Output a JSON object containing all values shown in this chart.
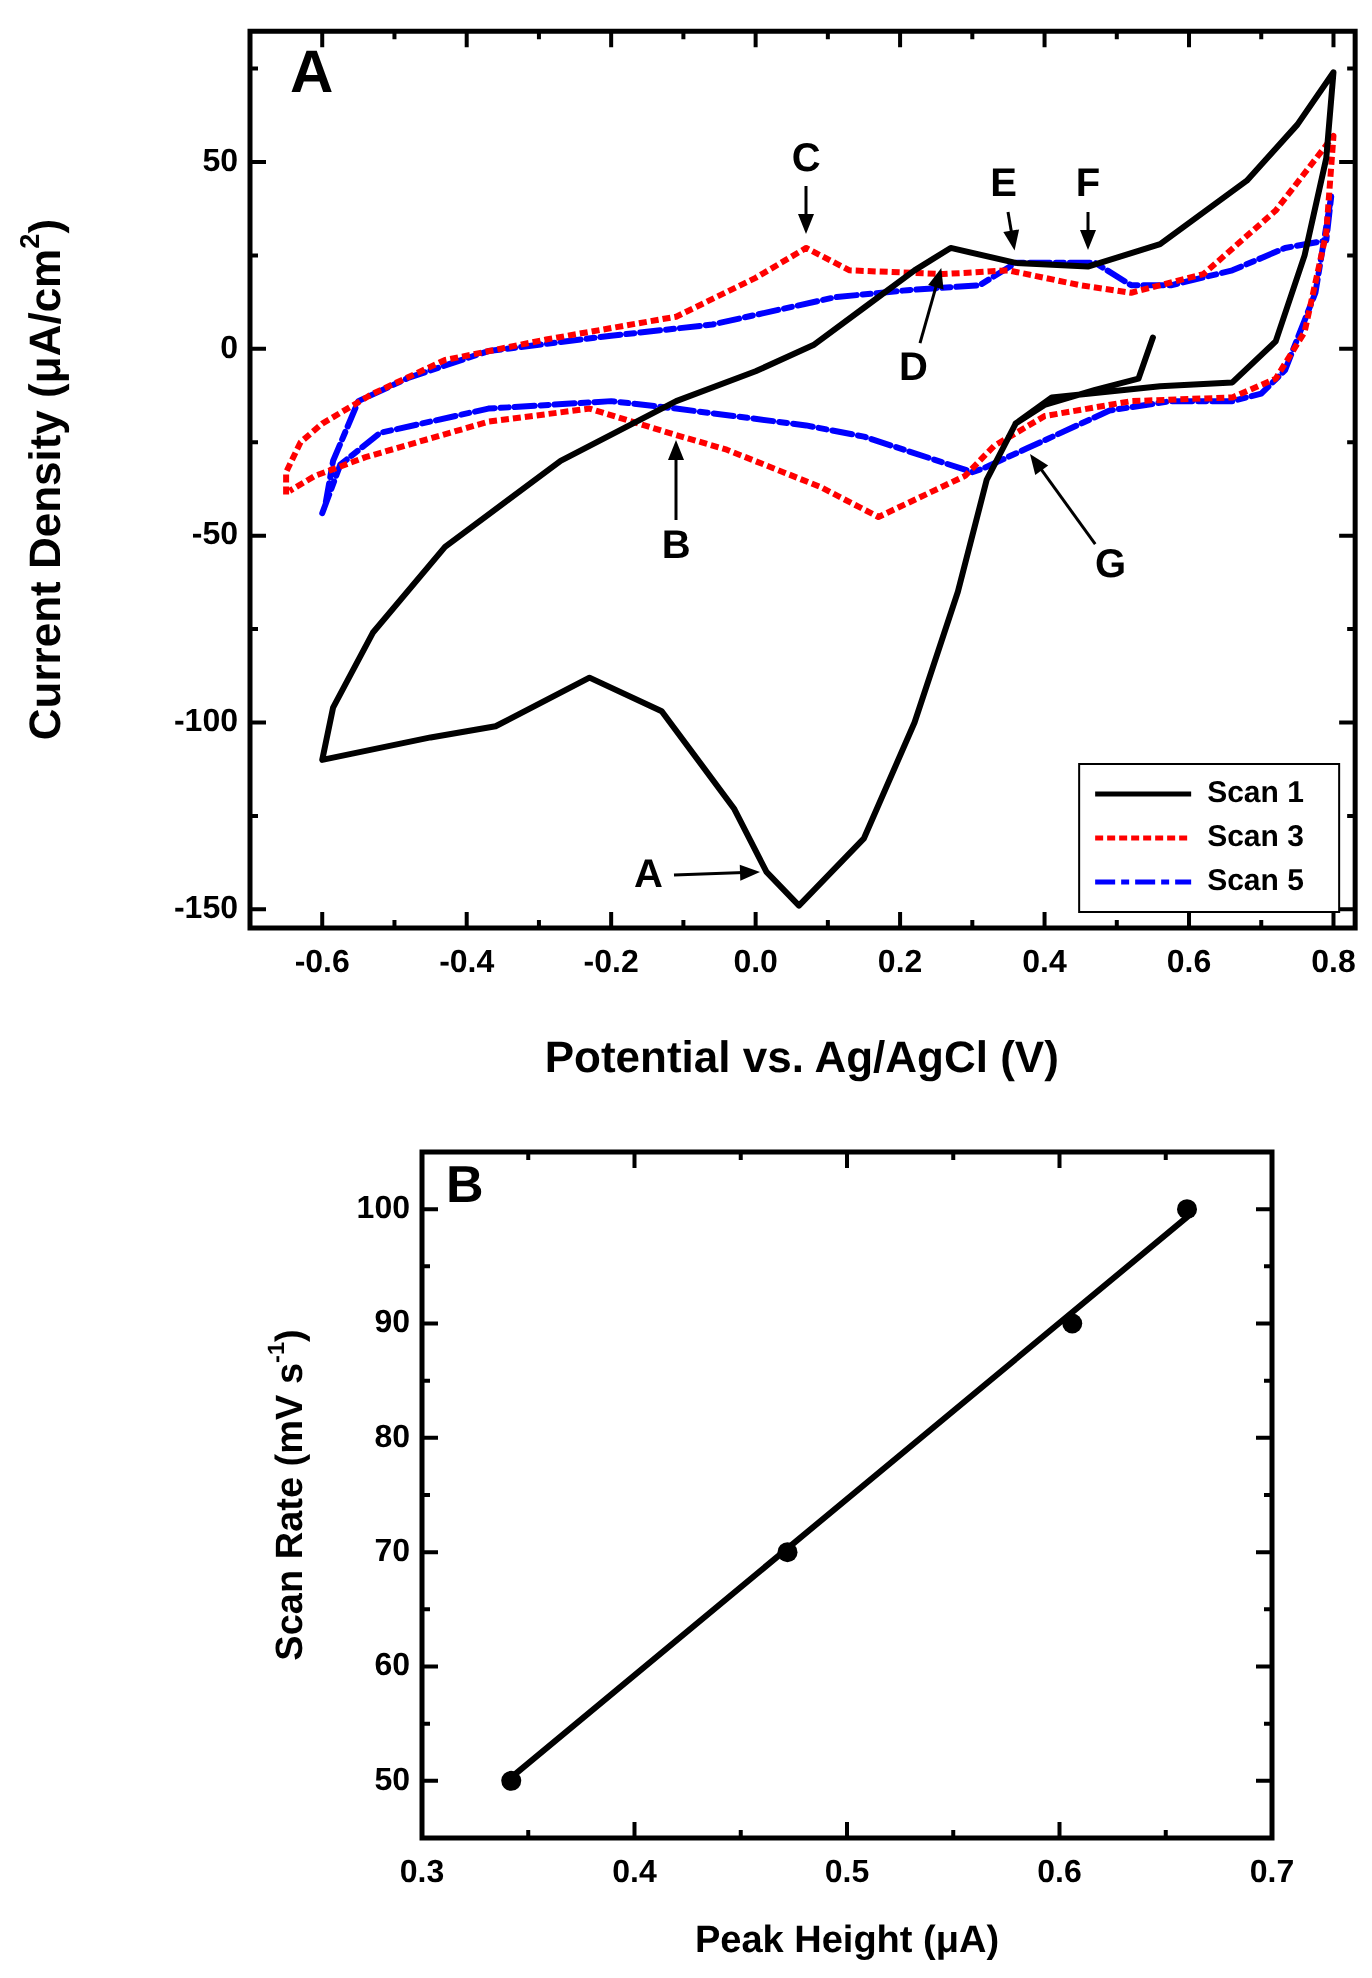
{
  "chart_data": [
    {
      "type": "line",
      "xlabel": "Potential vs. Ag/AgCl (V)",
      "ylabel": "Current Density (μA/cm$^{2}$)",
      "xlim": [
        -0.7,
        0.83
      ],
      "xticks": [
        -0.6,
        {
          "value": -0.5,
          "label": null
        },
        -0.4,
        {
          "value": -0.3,
          "label": null
        },
        -0.2,
        {
          "value": -0.1,
          "label": null
        },
        {
          "value": 0,
          "label": "0.0"
        },
        {
          "value": 0.1,
          "label": null
        },
        0.2,
        {
          "value": 0.3,
          "label": null
        },
        0.4,
        {
          "value": 0.5,
          "label": null
        },
        0.6,
        {
          "value": 0.7,
          "label": null
        },
        0.8
      ],
      "ylim": [
        -155,
        85
      ],
      "yticks": [
        -150,
        {
          "value": -125,
          "label": null
        },
        -100,
        {
          "value": -75,
          "label": null
        },
        -50,
        {
          "value": -25,
          "label": null
        },
        0,
        {
          "value": 25,
          "label": null
        },
        50,
        {
          "value": 75,
          "label": null
        }
      ],
      "grid": false,
      "legend": "bottom right",
      "marker": "none",
      "series": [
        {
          "name": "Scan 1",
          "color": "#000000",
          "line_style": "solid",
          "x": [
            0.55,
            0.53,
            0.47,
            0.4,
            0.36,
            0.32,
            0.28,
            0.22,
            0.15,
            0.06,
            0.015,
            -0.03,
            -0.13,
            -0.23,
            -0.36,
            -0.45,
            -0.6,
            -0.585,
            -0.53,
            -0.43,
            -0.27,
            -0.11,
            0.0,
            0.08,
            0.15,
            0.22,
            0.27,
            0.36,
            0.46,
            0.56,
            0.68,
            0.75,
            0.8,
            0.79,
            0.76,
            0.72,
            0.66,
            0.56,
            0.41,
            0.36
          ],
          "values": [
            3,
            -8,
            -11,
            -15,
            -20,
            -35,
            -65,
            -100,
            -131,
            -149,
            -140,
            -123,
            -97,
            -88,
            -101,
            -104,
            -110,
            -96,
            -76,
            -53,
            -30,
            -14,
            -6,
            1,
            11,
            21,
            27,
            23,
            22,
            28,
            45,
            60,
            74,
            51,
            25,
            2,
            -9,
            -10,
            -13,
            -20
          ]
        },
        {
          "name": "Scan 3",
          "color": "#ff0000",
          "line_style": "dotted",
          "x": [
            -0.65,
            -0.65,
            -0.63,
            -0.6,
            -0.53,
            -0.43,
            -0.29,
            -0.11,
            0.0,
            0.07,
            0.13,
            0.26,
            0.35,
            0.45,
            0.52,
            0.62,
            0.72,
            0.8,
            0.79,
            0.76,
            0.72,
            0.66,
            0.52,
            0.4,
            0.33,
            0.29,
            0.17,
            0.09,
            -0.04,
            -0.12,
            -0.23,
            -0.37,
            -0.54,
            -0.61,
            -0.645
          ],
          "values": [
            -39,
            -33,
            -25,
            -20,
            -12,
            -3,
            2.5,
            8.6,
            19,
            27,
            21,
            20,
            21,
            17,
            15,
            20,
            37,
            57,
            31,
            4.5,
            -8,
            -13,
            -14,
            -18,
            -26,
            -34,
            -45,
            -37,
            -27,
            -22.5,
            -16,
            -19.5,
            -29,
            -34,
            -38
          ]
        },
        {
          "name": "Scan 5",
          "color": "#0000ff",
          "line_style": "dashed",
          "x": [
            -0.6,
            -0.575,
            -0.52,
            -0.37,
            -0.2,
            -0.11,
            0.07,
            0.15,
            0.3,
            0.315,
            0.375,
            0.49,
            0.575,
            0.66,
            0.7,
            0.733,
            0.775,
            0.797,
            0.79,
            0.733,
            0.66,
            0.575,
            0.52,
            0.47,
            0.36,
            0.31,
            0.21,
            0.11,
            -0.06,
            -0.2,
            -0.37,
            -0.48,
            -0.55,
            -0.585,
            -0.595
          ],
          "values": [
            -44,
            -31,
            -22.5,
            -16,
            -14,
            -16,
            -20.5,
            -23.5,
            -33,
            -32,
            -26.7,
            -16.5,
            -14,
            -14,
            -12,
            -5.7,
            15,
            41,
            29,
            27,
            21,
            17,
            17,
            23,
            23,
            17,
            15.7,
            13.8,
            6.5,
            3.5,
            -0.6,
            -7.7,
            -14,
            -30,
            -41
          ]
        }
      ],
      "annotations": [
        "A",
        {
          "text": "A",
          "x": 0.015,
          "y": -140
        },
        {
          "text": "B",
          "x": -0.11,
          "y": -23
        },
        {
          "text": "C",
          "x": 0.07,
          "y": 29
        },
        {
          "text": "D",
          "x": 0.26,
          "y": 23
        },
        {
          "text": "E",
          "x": 0.36,
          "y": 25
        },
        {
          "text": "F",
          "x": 0.46,
          "y": 25
        },
        {
          "text": "G",
          "x": 0.375,
          "y": -27
        }
      ]
    },
    {
      "type": "scatter",
      "xlabel": "Peak Height (μA)",
      "ylabel": "Scan Rate (mV s$^{-1}$)",
      "xlim": [
        0.3,
        0.7
      ],
      "xticks": [
        0.3,
        {
          "value": 0.35,
          "label": null
        },
        0.4,
        {
          "value": 0.45,
          "label": null
        },
        0.5,
        {
          "value": 0.55,
          "label": null
        },
        0.6,
        {
          "value": 0.65,
          "label": null
        },
        0.7
      ],
      "ylim": [
        45,
        105
      ],
      "yticks": [
        50,
        {
          "value": 55,
          "label": null
        },
        60,
        {
          "value": 65,
          "label": null
        },
        70,
        {
          "value": 75,
          "label": null
        },
        80,
        {
          "value": 85,
          "label": null
        },
        90,
        {
          "value": 95,
          "label": null
        },
        100
      ],
      "grid": false,
      "legend": false,
      "series": [
        {
          "type": "scatter",
          "color": "#000000",
          "marker": "circle",
          "x": [
            0.342,
            0.472,
            0.606,
            0.66
          ],
          "values": [
            50,
            70,
            90,
            100
          ]
        },
        {
          "type": "line",
          "color": "#000000",
          "marker": "none",
          "line_style": "solid",
          "x": [
            0.342,
            0.66
          ],
          "values": [
            50.3,
            99.3
          ]
        }
      ],
      "annotations": [
        "B"
      ]
    }
  ]
}
